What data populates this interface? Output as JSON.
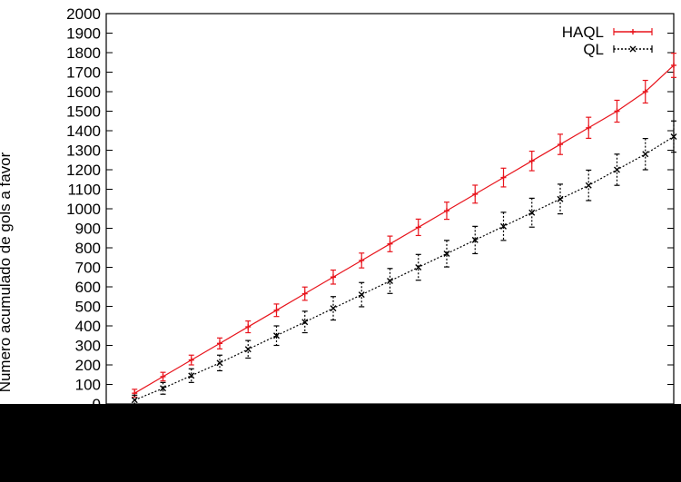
{
  "chart_data": {
    "type": "line",
    "title": "",
    "xlabel": "",
    "ylabel": "Numero acumulado de gols a favor",
    "ylim": [
      0,
      2000
    ],
    "yticks": [
      0,
      100,
      200,
      300,
      400,
      500,
      600,
      700,
      800,
      900,
      1000,
      1100,
      1200,
      1300,
      1400,
      1500,
      1600,
      1700,
      1800,
      1900,
      2000
    ],
    "grid": false,
    "legend_position": "top-right",
    "series": [
      {
        "name": "HAQL",
        "color": "#e8141c",
        "marker": "plus",
        "x": [
          100,
          200,
          300,
          400,
          500,
          600,
          700,
          800,
          900,
          1000,
          1100,
          1200,
          1300,
          1400,
          1500,
          1600,
          1700,
          1800,
          1900,
          2000
        ],
        "y": [
          55,
          140,
          225,
          310,
          395,
          480,
          565,
          650,
          735,
          820,
          905,
          990,
          1075,
          1160,
          1245,
          1330,
          1415,
          1500,
          1600,
          1735
        ],
        "err": [
          20,
          22,
          25,
          28,
          30,
          32,
          34,
          36,
          38,
          40,
          42,
          44,
          46,
          48,
          50,
          52,
          54,
          56,
          58,
          62
        ]
      },
      {
        "name": "QL",
        "color": "#000000",
        "marker": "cross",
        "x": [
          100,
          200,
          300,
          400,
          500,
          600,
          700,
          800,
          900,
          1000,
          1100,
          1200,
          1300,
          1400,
          1500,
          1600,
          1700,
          1800,
          1900,
          2000
        ],
        "y": [
          20,
          80,
          145,
          210,
          280,
          350,
          420,
          490,
          560,
          630,
          700,
          770,
          840,
          910,
          980,
          1050,
          1120,
          1200,
          1280,
          1370
        ],
        "err": [
          25,
          30,
          35,
          40,
          45,
          50,
          55,
          60,
          62,
          64,
          66,
          68,
          70,
          72,
          74,
          76,
          78,
          80,
          80,
          80
        ]
      }
    ]
  }
}
